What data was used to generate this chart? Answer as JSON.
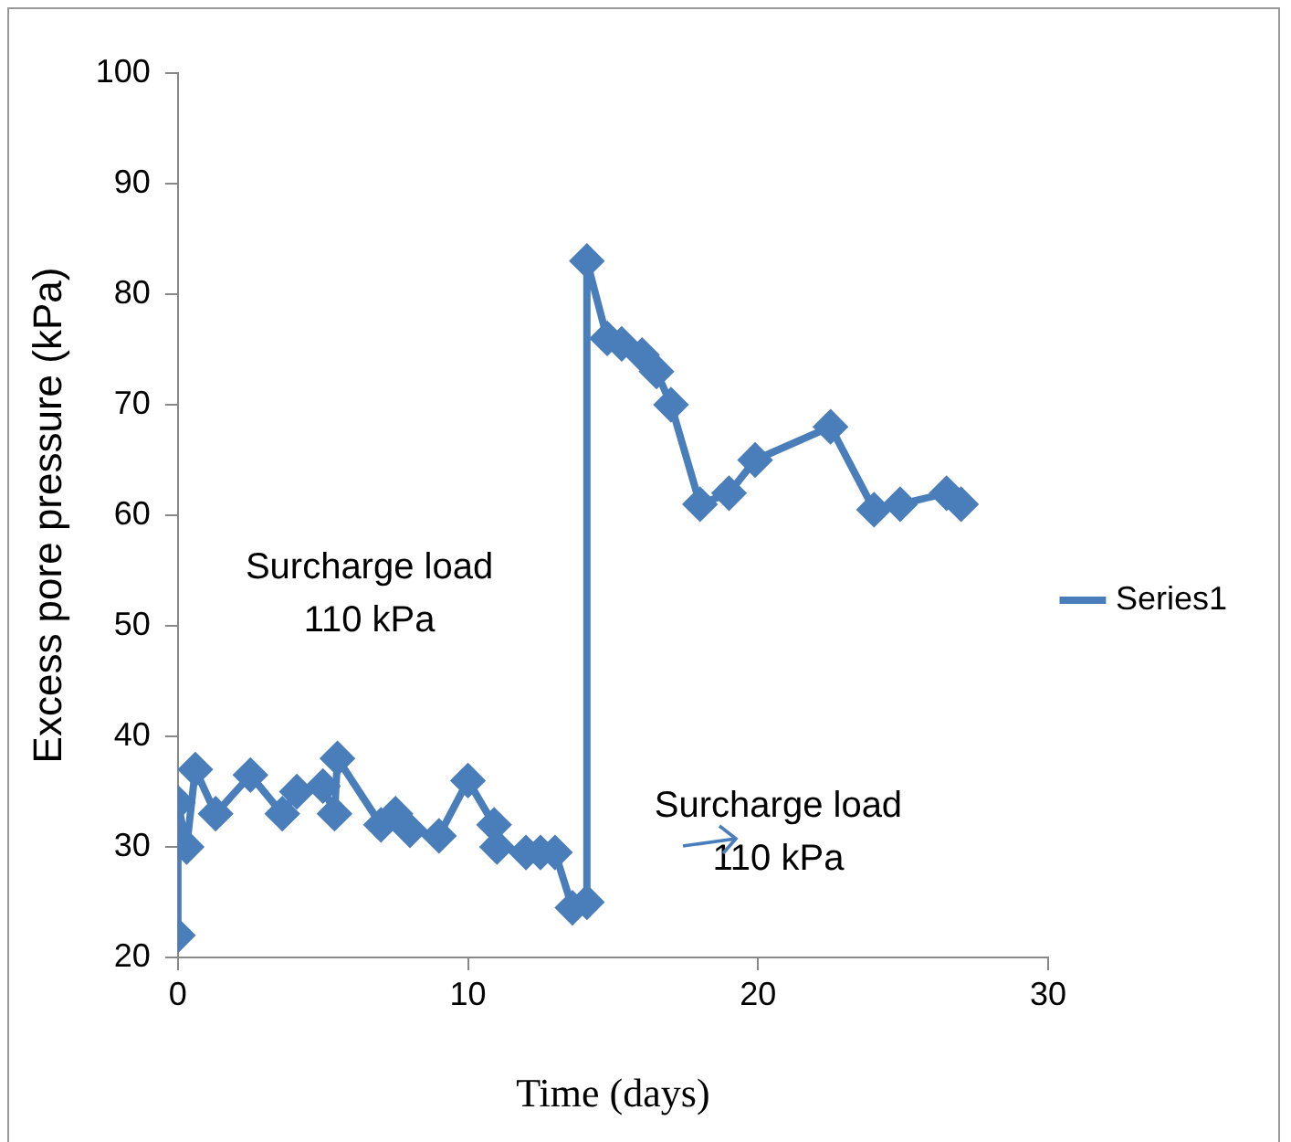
{
  "chart_data": {
    "type": "line",
    "xlabel": "Time (days)",
    "ylabel": "Excess pore pressure (kPa)",
    "x": [
      0,
      0,
      0.3,
      0.6,
      1.3,
      2.5,
      3.6,
      4.1,
      5,
      5.4,
      5.5,
      7,
      7.5,
      8,
      9,
      10,
      10.9,
      11,
      12,
      12.5,
      13,
      13.6,
      14.1,
      14.1,
      14.8,
      15.3,
      16,
      16.5,
      17,
      18,
      19,
      19.9,
      22.5,
      24,
      24.9,
      26.5,
      27
    ],
    "series": [
      {
        "name": "Series1",
        "color": "#4a7ebb",
        "values": [
          22,
          34,
          30,
          37,
          33,
          36.5,
          33,
          35,
          35.5,
          33,
          38,
          32,
          33,
          31.5,
          31,
          36,
          32,
          30,
          29.5,
          29.5,
          29.5,
          24.5,
          25,
          83,
          76,
          75.5,
          74.5,
          73,
          70,
          61,
          62,
          65,
          68,
          60.5,
          61,
          62,
          61
        ]
      }
    ],
    "xlim": [
      0,
      30
    ],
    "xticks": [
      0,
      10,
      20,
      30
    ],
    "ylim": [
      20,
      100
    ],
    "yticks": [
      20,
      30,
      40,
      50,
      60,
      70,
      80,
      90,
      100
    ],
    "annotations": [
      "Surcharge load\n110 kPa",
      "Surcharge load\n110 kPa"
    ],
    "grid": false,
    "legend": "right",
    "marker": "diamond",
    "line_style": "solid"
  }
}
